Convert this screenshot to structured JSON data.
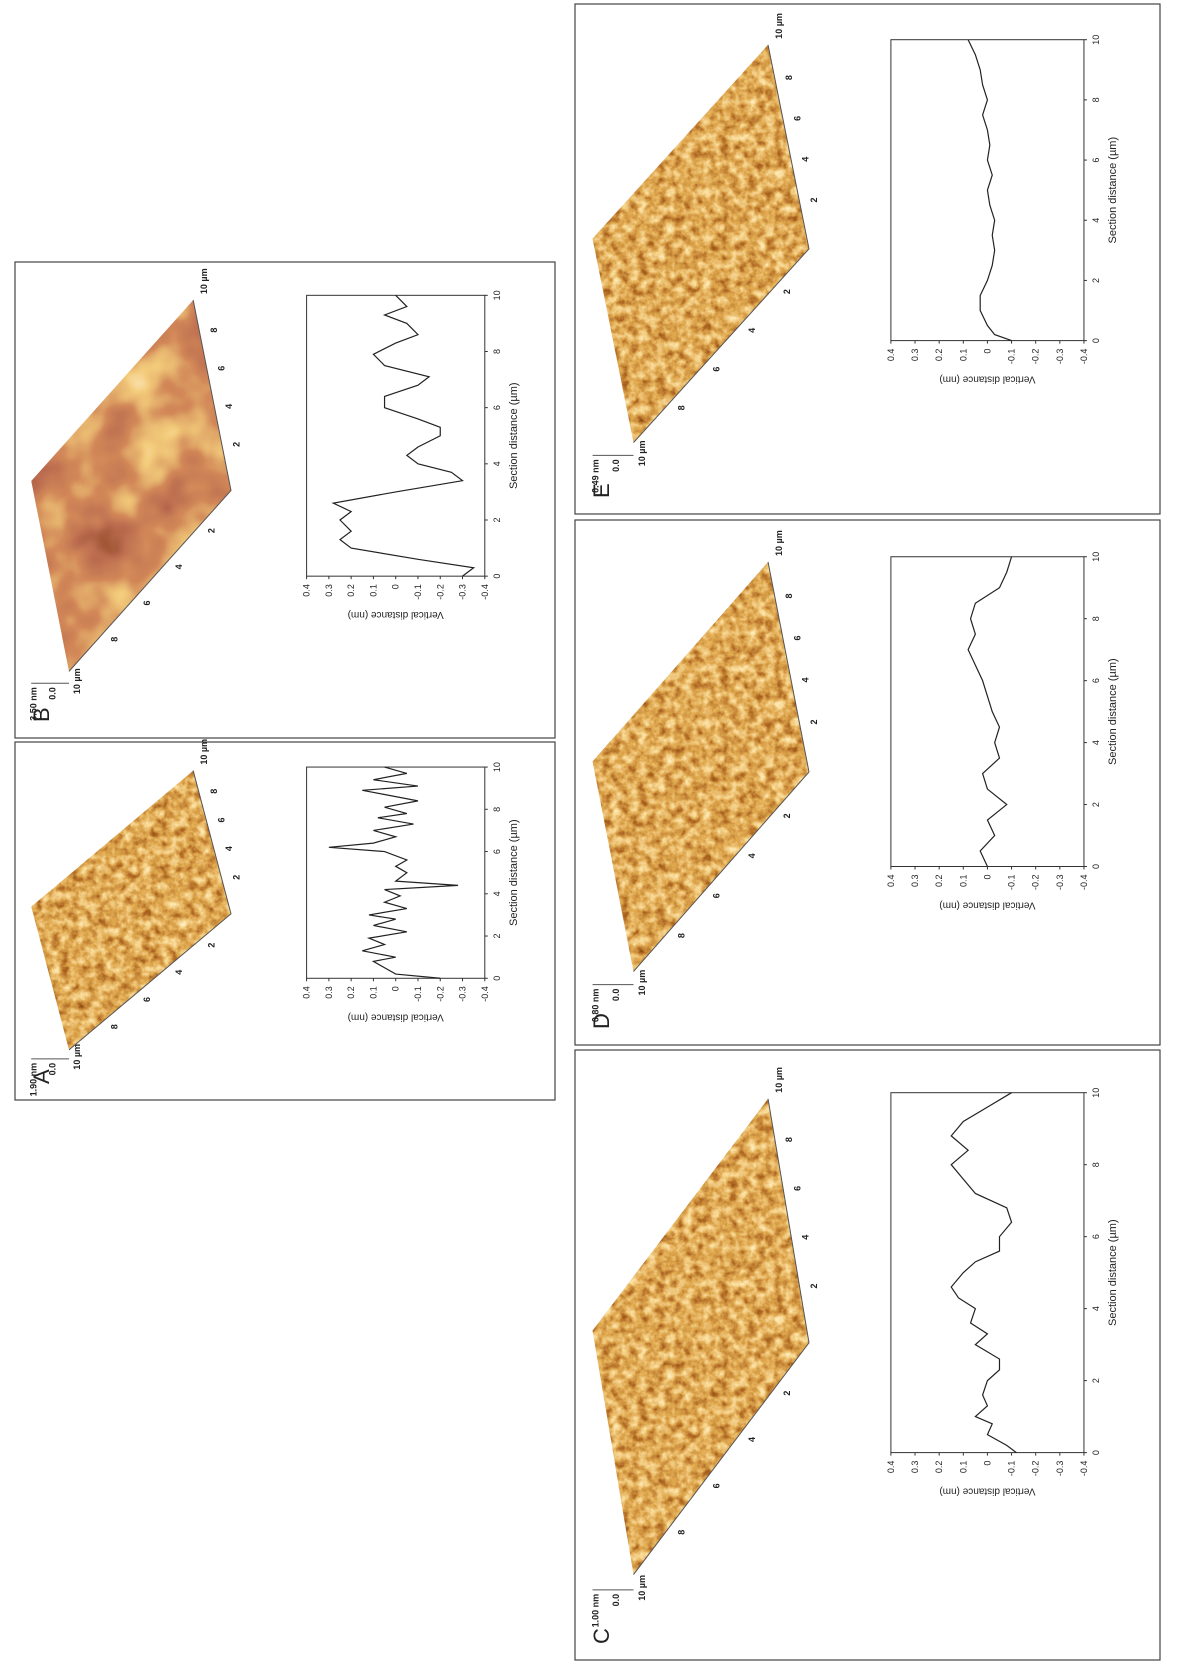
{
  "chart_data": [
    {
      "type": "line",
      "panel": "A",
      "z_scale": "1.90 nm",
      "z_zero": "0.0",
      "scan_size": "10 µm",
      "surface_ticks": [
        2,
        4,
        6,
        8
      ],
      "xlabel": "Section distance (µm)",
      "ylabel": "Vertical distance (nm)",
      "color": "#222222",
      "x": [
        0,
        0.2,
        0.5,
        0.8,
        1.0,
        1.3,
        1.6,
        1.9,
        2.2,
        2.5,
        2.8,
        3.0,
        3.3,
        3.6,
        3.9,
        4.2,
        4.4,
        4.6,
        5.0,
        5.3,
        5.6,
        6.0,
        6.2,
        6.4,
        6.7,
        7.0,
        7.3,
        7.6,
        7.8,
        8.1,
        8.4,
        8.7,
        8.9,
        9.1,
        9.4,
        9.7,
        10
      ],
      "values": [
        -0.2,
        0.0,
        0.05,
        0.1,
        0.0,
        0.15,
        0.05,
        0.12,
        -0.05,
        0.1,
        0.0,
        0.12,
        -0.05,
        0.05,
        -0.02,
        0.05,
        -0.28,
        0.0,
        -0.05,
        0.0,
        -0.05,
        0.05,
        0.3,
        0.1,
        0.0,
        0.1,
        -0.08,
        0.08,
        -0.05,
        0.05,
        -0.1,
        0.05,
        0.15,
        -0.1,
        0.1,
        -0.05,
        0.05
      ],
      "xlim": [
        0,
        10
      ],
      "ylim": [
        -0.4,
        0.4
      ],
      "xticks": [
        0,
        2,
        4,
        6,
        8,
        10
      ],
      "yticks": [
        -0.4,
        -0.3,
        -0.2,
        -0.1,
        0,
        0.1,
        0.2,
        0.3,
        0.4
      ]
    },
    {
      "type": "line",
      "panel": "B",
      "z_scale": "3.50 nm",
      "z_zero": "0.0",
      "scan_size": "10 µm",
      "surface_ticks": [
        2,
        4,
        6,
        8
      ],
      "xlabel": "Section distance (µm)",
      "ylabel": "Vertical distance (nm)",
      "color": "#222222",
      "x": [
        0,
        0.3,
        0.6,
        1.0,
        1.3,
        1.6,
        2.0,
        2.3,
        2.6,
        3.0,
        3.4,
        3.7,
        4.0,
        4.3,
        4.6,
        5.0,
        5.3,
        5.6,
        6.0,
        6.4,
        6.8,
        7.1,
        7.5,
        7.9,
        8.3,
        8.6,
        9.0,
        9.3,
        9.6,
        10
      ],
      "values": [
        -0.3,
        -0.35,
        -0.1,
        0.2,
        0.25,
        0.2,
        0.25,
        0.2,
        0.28,
        0.0,
        -0.3,
        -0.25,
        -0.1,
        -0.05,
        -0.1,
        -0.2,
        -0.2,
        -0.1,
        0.05,
        0.05,
        -0.1,
        -0.15,
        0.05,
        0.1,
        0.0,
        -0.1,
        -0.05,
        0.05,
        -0.05,
        0.0
      ],
      "xlim": [
        0,
        10
      ],
      "ylim": [
        -0.4,
        0.4
      ],
      "xticks": [
        0,
        2,
        4,
        6,
        8,
        10
      ],
      "yticks": [
        -0.4,
        -0.3,
        -0.2,
        -0.1,
        0,
        0.1,
        0.2,
        0.3,
        0.4
      ]
    },
    {
      "type": "line",
      "panel": "C",
      "z_scale": "1.00 nm",
      "z_zero": "0.0",
      "scan_size": "10 µm",
      "surface_ticks": [
        2,
        4,
        6,
        8
      ],
      "xlabel": "Section distance (µm)",
      "ylabel": "Vertical distance (nm)",
      "color": "#222222",
      "x": [
        0,
        0.2,
        0.5,
        0.8,
        1.0,
        1.3,
        1.6,
        2.0,
        2.3,
        2.6,
        3.0,
        3.3,
        3.6,
        4.0,
        4.3,
        4.6,
        5.0,
        5.3,
        5.6,
        6.0,
        6.4,
        6.8,
        7.2,
        7.6,
        8.0,
        8.4,
        8.8,
        9.2,
        9.6,
        10
      ],
      "values": [
        -0.12,
        -0.08,
        0.0,
        -0.02,
        0.05,
        0.0,
        0.02,
        0.0,
        -0.05,
        -0.05,
        0.05,
        0.0,
        0.07,
        0.05,
        0.12,
        0.15,
        0.1,
        0.05,
        -0.05,
        -0.05,
        -0.1,
        -0.08,
        0.05,
        0.1,
        0.15,
        0.08,
        0.15,
        0.1,
        0.0,
        -0.1
      ],
      "xlim": [
        0,
        10
      ],
      "ylim": [
        -0.4,
        0.4
      ],
      "xticks": [
        0,
        2,
        4,
        6,
        8,
        10
      ],
      "yticks": [
        -0.4,
        -0.3,
        -0.2,
        -0.1,
        0,
        0.1,
        0.2,
        0.3,
        0.4
      ]
    },
    {
      "type": "line",
      "panel": "D",
      "z_scale": "0.80 nm",
      "z_zero": "0.0",
      "scan_size": "10 µm",
      "surface_ticks": [
        2,
        4,
        6,
        8
      ],
      "xlabel": "Section distance (µm)",
      "ylabel": "Vertical distance (nm)",
      "color": "#222222",
      "x": [
        0,
        0.5,
        1.0,
        1.5,
        2.0,
        2.5,
        3.0,
        3.5,
        4.0,
        4.5,
        5.0,
        5.5,
        6.0,
        6.5,
        7.0,
        7.5,
        8.0,
        8.5,
        9.0,
        9.5,
        10
      ],
      "values": [
        0.0,
        0.03,
        -0.03,
        0.0,
        -0.08,
        0.0,
        0.02,
        -0.05,
        -0.03,
        -0.05,
        -0.02,
        0.0,
        0.02,
        0.05,
        0.08,
        0.05,
        0.07,
        0.05,
        -0.05,
        -0.08,
        -0.1
      ],
      "xlim": [
        0,
        10
      ],
      "ylim": [
        -0.4,
        0.4
      ],
      "xticks": [
        0,
        2,
        4,
        6,
        8,
        10
      ],
      "yticks": [
        -0.4,
        -0.3,
        -0.2,
        -0.1,
        0,
        0.1,
        0.2,
        0.3,
        0.4
      ]
    },
    {
      "type": "line",
      "panel": "E",
      "z_scale": "0.49 nm",
      "z_zero": "0.0",
      "scan_size": "10 µm",
      "surface_ticks": [
        2,
        4,
        6,
        8
      ],
      "xlabel": "Section distance (µm)",
      "ylabel": "Vertical distance (nm)",
      "color": "#222222",
      "x": [
        0,
        0.2,
        0.5,
        1.0,
        1.5,
        2.0,
        2.5,
        3.0,
        3.5,
        4.0,
        4.5,
        5.0,
        5.5,
        6.0,
        6.5,
        7.0,
        7.5,
        8.0,
        8.5,
        9.0,
        9.5,
        10
      ],
      "values": [
        -0.1,
        -0.03,
        0.0,
        0.03,
        0.03,
        0.0,
        -0.02,
        -0.03,
        -0.02,
        -0.03,
        -0.01,
        0.0,
        -0.02,
        0.0,
        -0.01,
        0.0,
        0.02,
        0.0,
        0.02,
        0.03,
        0.05,
        0.08
      ],
      "xlim": [
        0,
        10
      ],
      "ylim": [
        -0.4,
        0.4
      ],
      "xticks": [
        0,
        2,
        4,
        6,
        8,
        10
      ],
      "yticks": [
        -0.4,
        -0.3,
        -0.2,
        -0.1,
        0,
        0.1,
        0.2,
        0.3,
        0.4
      ]
    }
  ]
}
